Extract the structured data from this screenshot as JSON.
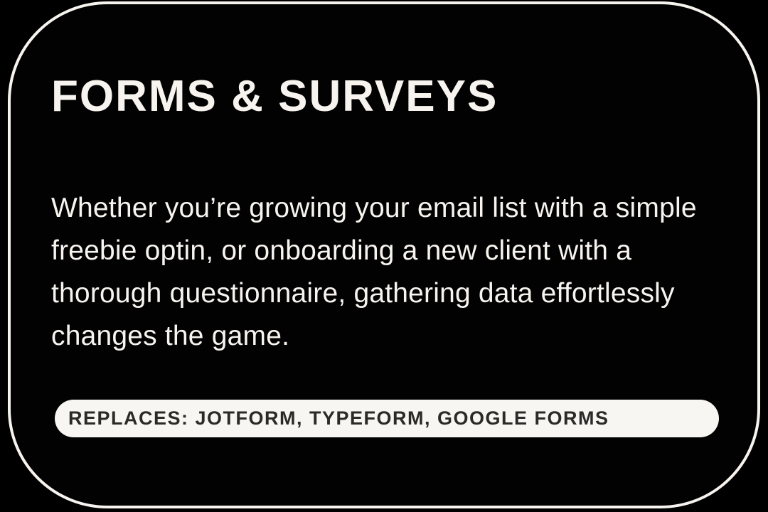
{
  "card": {
    "title": "FORMS & SURVEYS",
    "description": "Whether you’re growing your email list with a simple freebie optin, or onboarding a new client with a thorough questionnaire, gathering data effortlessly changes the game.",
    "badge": "REPLACES: JOTFORM, TYPEFORM, GOOGLE FORMS"
  },
  "colors": {
    "background": "#000000",
    "card_background": "#020202",
    "border_and_text": "#F7F4F0",
    "badge_background": "#F8F6F2",
    "badge_text": "#2B2A28"
  }
}
